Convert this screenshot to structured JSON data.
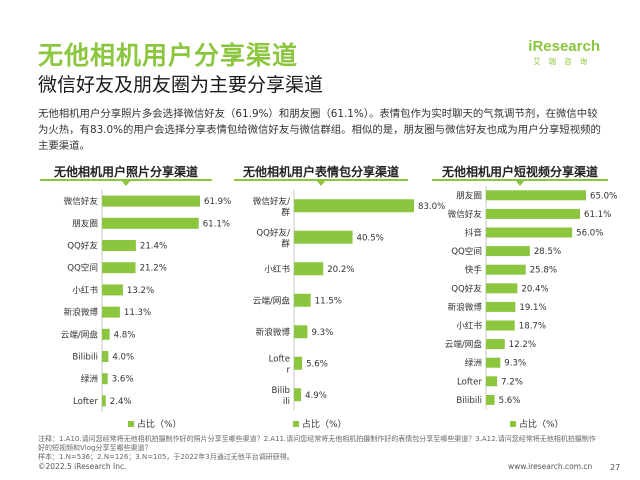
{
  "header": {
    "title": "无他相机用户分享渠道",
    "subtitle": "微信好友及朋友圈为主要分享渠道",
    "logo_text": "iResearch",
    "logo_sub": "艾瑞咨询"
  },
  "intro": "无他相机用户分享照片多会选择微信好友（61.9%）和朋友圈（61.1%）。表情包作为实时聊天的气氛调节剂，在微信中较为火热，有83.0%的用户会选择分享表情包给微信好友与微信群组。相似的是，朋友圈与微信好友也成为用户分享短视频的主要渠道。",
  "colors": {
    "accent": "#8cc63f"
  },
  "legend_label": "占比（%）",
  "chart_data": [
    {
      "type": "bar",
      "orientation": "horizontal",
      "title": "无他相机用户照片分享渠道",
      "categories": [
        "微信好友",
        "朋友圈",
        "QQ好友",
        "QQ空间",
        "小红书",
        "新浪微博",
        "云端/网盘",
        "Bilibili",
        "绿洲",
        "Lofter"
      ],
      "values": [
        61.9,
        61.1,
        21.4,
        21.2,
        13.2,
        11.3,
        4.8,
        4.0,
        3.6,
        2.4
      ],
      "value_labels": [
        "61.9%",
        "61.1%",
        "21.4%",
        "21.2%",
        "13.2%",
        "11.3%",
        "4.8%",
        "4.0%",
        "3.6%",
        "2.4%"
      ],
      "legend": [
        "占比（%）"
      ],
      "unit": "%"
    },
    {
      "type": "bar",
      "orientation": "horizontal",
      "title": "无他相机用户表情包分享渠道",
      "categories": [
        "微信好友/群",
        "QQ好友/群",
        "小红书",
        "云端/网盘",
        "新浪微博",
        "Lofter",
        "Bilibili"
      ],
      "values": [
        83.0,
        40.5,
        20.2,
        11.5,
        9.3,
        5.6,
        4.9
      ],
      "value_labels": [
        "83.0%",
        "40.5%",
        "20.2%",
        "11.5%",
        "9.3%",
        "5.6%",
        "4.9%"
      ],
      "legend": [
        "占比（%）"
      ],
      "unit": "%"
    },
    {
      "type": "bar",
      "orientation": "horizontal",
      "title": "无他相机用户短视频分享渠道",
      "categories": [
        "朋友圈",
        "微信好友",
        "抖音",
        "QQ空间",
        "快手",
        "QQ好友",
        "新浪微博",
        "小红书",
        "云端/网盘",
        "绿洲",
        "Lofter",
        "Bilibili"
      ],
      "values": [
        65.0,
        61.1,
        56.0,
        28.5,
        25.8,
        20.4,
        19.1,
        18.7,
        12.2,
        9.3,
        7.2,
        5.6
      ],
      "value_labels": [
        "65.0%",
        "61.1%",
        "56.0%",
        "28.5%",
        "25.8%",
        "20.4%",
        "19.1%",
        "18.7%",
        "12.2%",
        "9.3%",
        "7.2%",
        "5.6%"
      ],
      "legend": [
        "占比（%）"
      ],
      "unit": "%"
    }
  ],
  "footnote": {
    "line1": "注释：1.A10.请问您经常将无他相机拍摄制作好的照片分享至哪些渠道？2.A11.请问您经常将无他相机拍摄制作好的表情包分享至哪些渠道？3.A12.请问您经常将无他相机拍摄制作",
    "line2": "好的短视频和Vlog分享至哪些渠道？",
    "line3": "样本：1.N=536；2.N=126；3.N=105，于2022年3月通过无他平台调研获得。"
  },
  "copyright": "©2022.5 iResearch Inc.",
  "site": "www.iresearch.com.cn",
  "page_number": "27"
}
